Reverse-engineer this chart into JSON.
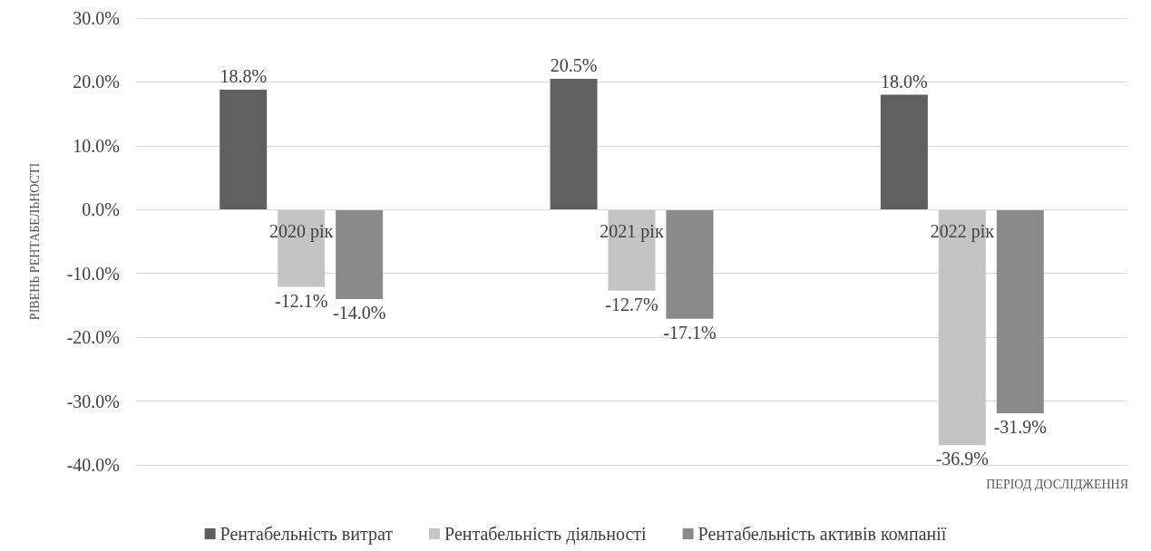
{
  "chart_data": {
    "type": "bar",
    "xlabel": "ПЕРІОД ДОСЛІДЖЕННЯ",
    "ylabel": "РІВЕНЬ РЕНТАБЕЛЬНОСТІ",
    "categories": [
      "2020 рік",
      "2021 рік",
      "2022 рік"
    ],
    "series": [
      {
        "name": "Рентабельність витрат",
        "color": "#5f5f5f",
        "values": [
          18.8,
          20.5,
          18.0
        ],
        "value_labels": [
          "18.8%",
          "20.5%",
          "18.0%"
        ]
      },
      {
        "name": "Рентабельність діяльності",
        "color": "#c4c4c4",
        "values": [
          -12.1,
          -12.7,
          -36.9
        ],
        "value_labels": [
          "-12.1%",
          "-12.7%",
          "-36.9%"
        ]
      },
      {
        "name": "Рентабельність активів компанії",
        "color": "#8a8a8a",
        "values": [
          -14.0,
          -17.1,
          -31.9
        ],
        "value_labels": [
          "-14.0%",
          "-17.1%",
          "-31.9%"
        ]
      }
    ],
    "ylim": [
      -40,
      30
    ],
    "yticks": [
      {
        "value": -40,
        "label": "-40.0%"
      },
      {
        "value": -30,
        "label": "-30.0%"
      },
      {
        "value": -20,
        "label": "-20.0%"
      },
      {
        "value": -10,
        "label": "-10.0%"
      },
      {
        "value": 0,
        "label": "0.0%"
      },
      {
        "value": 10,
        "label": "10.0%"
      },
      {
        "value": 20,
        "label": "20.0%"
      },
      {
        "value": 30,
        "label": "30.0%"
      }
    ],
    "grid": true,
    "legend": "bottom"
  }
}
